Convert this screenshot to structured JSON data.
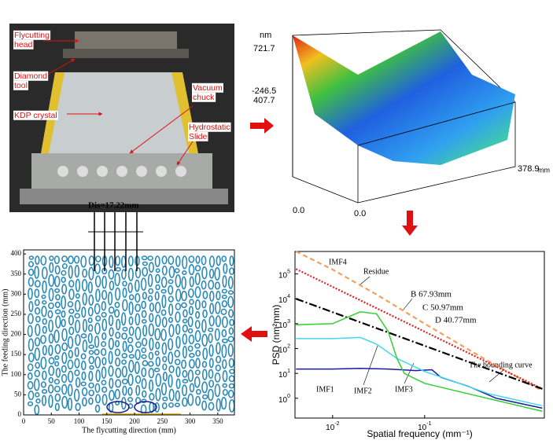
{
  "photo": {
    "labels": [
      {
        "lines": [
          "Flycutting",
          "head"
        ]
      },
      {
        "lines": [
          "Diamond",
          "tool"
        ]
      },
      {
        "lines": [
          "KDP crystal"
        ]
      },
      {
        "lines": [
          "Vacuum",
          "chuck"
        ]
      },
      {
        "lines": [
          "Hydrostatic",
          "Slide"
        ]
      }
    ]
  },
  "surface": {
    "unit": "nm",
    "zmax": "721.7",
    "zmin": "-246.5",
    "ymax": "407.7",
    "xmax": "378.9",
    "xunit": "mm",
    "x0": "0.0",
    "y0": "0.0"
  },
  "psd": {
    "type": "line",
    "xlabel": "Spatial frequency (mm⁻¹)",
    "ylabel": "PSD (nm²mm)",
    "xlog": true,
    "ylog": true,
    "xlim": [
      0.0039,
      2.0
    ],
    "ylim": [
      0.16,
      800000
    ],
    "xticks": [
      {
        "value": 0.01,
        "base": "10",
        "exp": "-2"
      },
      {
        "value": 0.1,
        "base": "10",
        "exp": "-1"
      }
    ],
    "yticks": [
      {
        "value": 1,
        "base": "10",
        "exp": "0"
      },
      {
        "value": 10,
        "base": "10",
        "exp": "1"
      },
      {
        "value": 100,
        "base": "10",
        "exp": "2"
      },
      {
        "value": 1000,
        "base": "10",
        "exp": "3"
      },
      {
        "value": 10000,
        "base": "10",
        "exp": "4"
      },
      {
        "value": 100000,
        "base": "10",
        "exp": "5"
      }
    ],
    "series": [
      {
        "name": "IMF4",
        "color": "#f0a060",
        "dash": "6 4",
        "x": [
          0.004,
          0.01,
          0.03,
          0.1,
          0.5,
          1.9
        ],
        "values": [
          800000,
          150000,
          15000,
          1000,
          30,
          2
        ]
      },
      {
        "name": "Residue",
        "color": "#e02020",
        "dash": "2 2",
        "x": [
          0.004,
          0.02,
          0.1,
          0.5,
          1.9
        ],
        "values": [
          158000,
          8700,
          480,
          26,
          2.4
        ]
      },
      {
        "name": "The bounding curve",
        "color": "#000000",
        "dash": "10 3 2 3",
        "x": [
          0.004,
          1.9
        ],
        "values": [
          10000,
          2.4
        ]
      },
      {
        "name": "IMF1",
        "color": "#1a1aa0",
        "dash": "",
        "x": [
          0.004,
          0.01,
          0.02,
          0.04,
          0.08,
          0.12,
          0.15,
          0.3,
          0.6,
          1.9
        ],
        "values": [
          15,
          15,
          16,
          15,
          13,
          14,
          7,
          3,
          1,
          0.4
        ]
      },
      {
        "name": "IMF2",
        "color": "#40d8f0",
        "dash": "",
        "x": [
          0.004,
          0.01,
          0.02,
          0.03,
          0.05,
          0.1,
          0.2,
          0.5,
          1.9
        ],
        "values": [
          250,
          250,
          280,
          150,
          40,
          12,
          5,
          1.5,
          0.5
        ]
      },
      {
        "name": "IMF3",
        "color": "#30d030",
        "dash": "",
        "x": [
          0.004,
          0.01,
          0.02,
          0.03,
          0.04,
          0.05,
          0.06,
          0.1,
          0.3,
          1.9
        ],
        "values": [
          900,
          1000,
          3000,
          2500,
          500,
          40,
          10,
          4,
          1.5,
          0.3
        ]
      }
    ],
    "annotations": [
      "B 67.93mm",
      "C 50.97mm",
      "D 40.77mm"
    ]
  },
  "contour": {
    "xlabel": "The flycutting direction (mm)",
    "ylabel": "The feeding direction (mm)",
    "annotation": "Dis=17.22mm",
    "xlim": [
      0,
      380
    ],
    "ylim": [
      0,
      410
    ],
    "xticks": [
      0,
      50,
      100,
      150,
      200,
      250,
      300,
      350
    ],
    "yticks": [
      0,
      50,
      100,
      150,
      200,
      250,
      300,
      350,
      400
    ]
  }
}
